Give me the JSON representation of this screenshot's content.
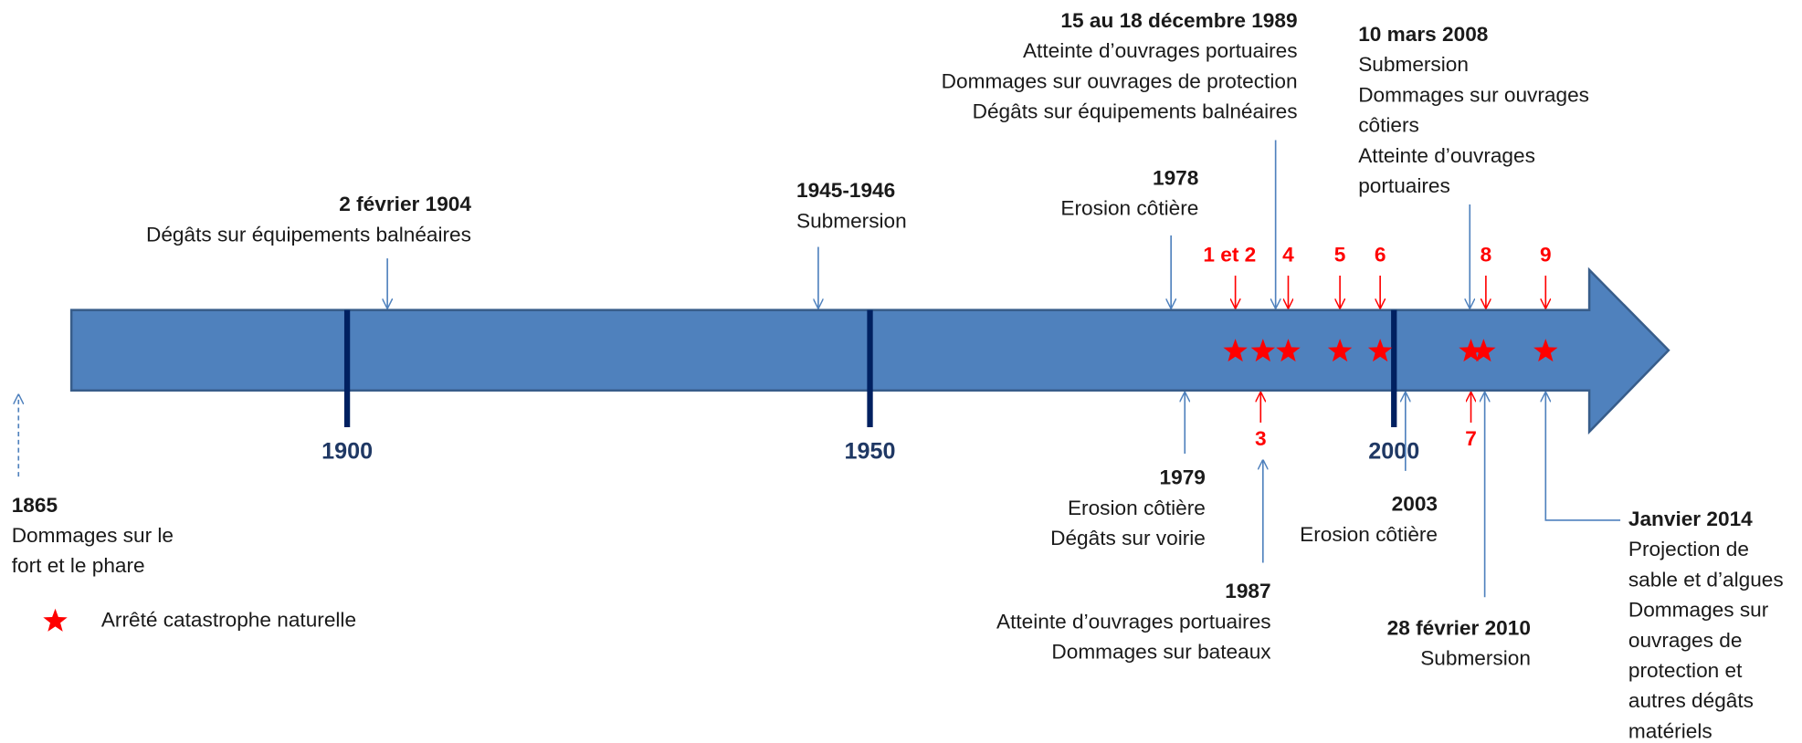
{
  "events": [
    {
      "date": "1865",
      "lines": [
        "Dommages sur le",
        "fort et le phare"
      ]
    },
    {
      "date": "2 février 1904",
      "lines": [
        "Dégâts sur équipements  balnéaires"
      ]
    },
    {
      "date": "1945-1946",
      "lines": [
        "Submersion"
      ]
    },
    {
      "date": "1978",
      "lines": [
        "Erosion côtière"
      ]
    },
    {
      "date": "15 au 18 décembre 1989",
      "lines": [
        "Atteinte d’ouvrages portuaires",
        "Dommages sur ouvrages de protection",
        "Dégâts sur équipements  balnéaires"
      ]
    },
    {
      "date": "10 mars 2008",
      "lines": [
        "Submersion",
        "Dommages sur ouvrages",
        "côtiers",
        "Atteinte d’ouvrages",
        "portuaires"
      ]
    },
    {
      "date": "1979",
      "lines": [
        "Erosion côtière",
        "Dégâts sur voirie"
      ]
    },
    {
      "date": "1987",
      "lines": [
        "Atteinte d’ouvrages portuaires",
        "Dommages sur bateaux"
      ]
    },
    {
      "date": "2003",
      "lines": [
        "Erosion côtière"
      ]
    },
    {
      "date": "28 février 2010",
      "lines": [
        "Submersion"
      ]
    },
    {
      "date": "Janvier 2014",
      "lines": [
        "Projection de",
        "sable et d’algues",
        "Dommages sur",
        "ouvrages de",
        "protection et",
        "autres dégâts",
        "matériels"
      ]
    }
  ],
  "axis_labels": [
    "1900",
    "1950",
    "2000"
  ],
  "markers": [
    "1 et 2",
    "3",
    "4",
    "5",
    "6",
    "7",
    "8",
    "9"
  ],
  "legend": {
    "label": "Arrêté catastrophe naturelle"
  }
}
